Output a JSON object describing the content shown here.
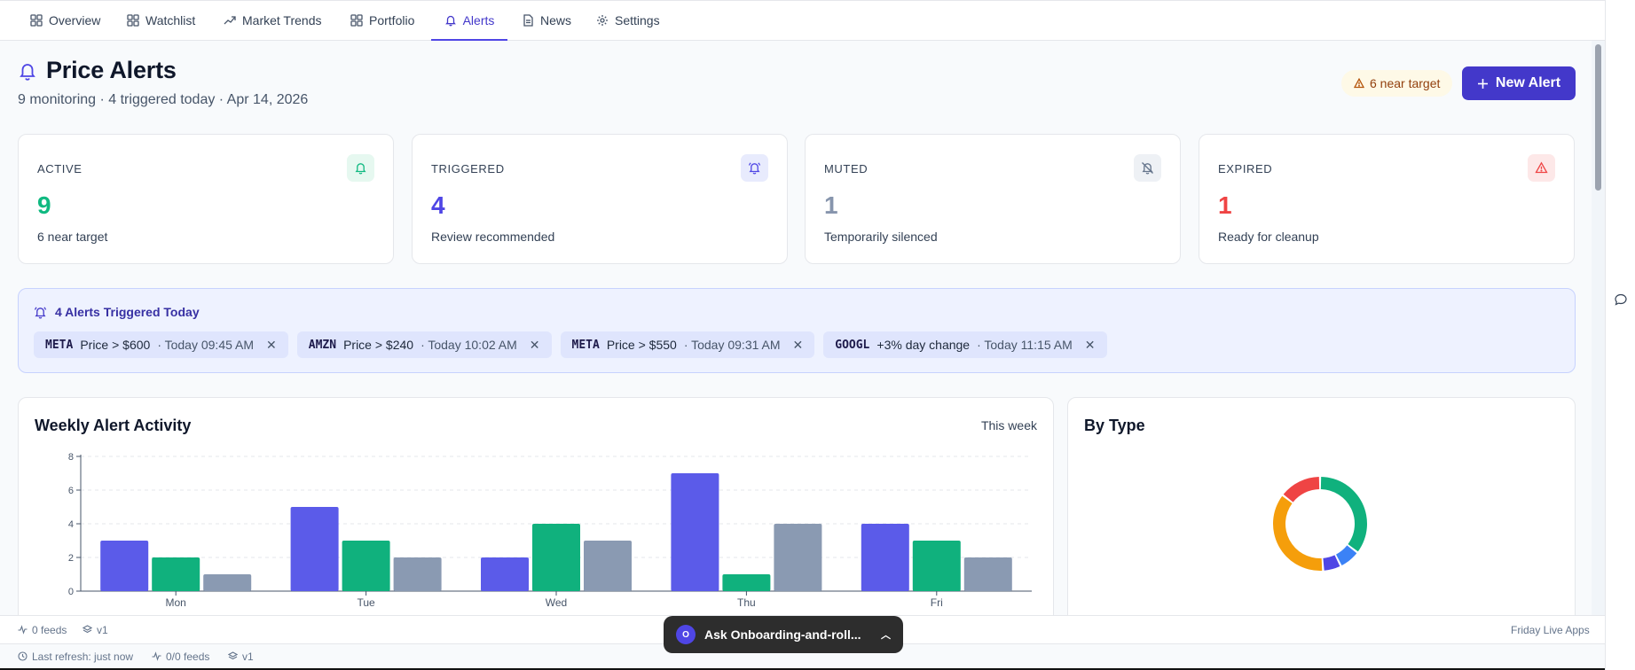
{
  "nav": {
    "tabs": [
      {
        "label": "Overview",
        "icon": "grid-icon"
      },
      {
        "label": "Watchlist",
        "icon": "grid-icon"
      },
      {
        "label": "Market Trends",
        "icon": "trend-icon"
      },
      {
        "label": "Portfolio",
        "icon": "grid-icon"
      },
      {
        "label": "Alerts",
        "icon": "bell-icon",
        "active": true
      },
      {
        "label": "News",
        "icon": "document-icon"
      },
      {
        "label": "Settings",
        "icon": "gear-icon"
      }
    ]
  },
  "header": {
    "title": "Price Alerts",
    "subtitle": "9 monitoring · 4 triggered today · Apr 14, 2026",
    "near_badge": "6 near target",
    "new_alert_label": "New Alert"
  },
  "stats": [
    {
      "label": "ACTIVE",
      "value": "9",
      "desc": "6 near target",
      "color": "#10b981",
      "icon_bg": "#e6f8f0",
      "icon": "bell-icon"
    },
    {
      "label": "TRIGGERED",
      "value": "4",
      "desc": "Review recommended",
      "color": "#4f46e5",
      "icon_bg": "#e8ebfd",
      "icon": "bell-ring-icon"
    },
    {
      "label": "MUTED",
      "value": "1",
      "desc": "Temporarily silenced",
      "color": "#8795ad",
      "icon_bg": "#eef1f5",
      "icon": "bell-off-icon"
    },
    {
      "label": "EXPIRED",
      "value": "1",
      "desc": "Ready for cleanup",
      "color": "#ef4444",
      "icon_bg": "#fde8e8",
      "icon": "alert-triangle-icon"
    }
  ],
  "triggered": {
    "title": "4 Alerts Triggered Today",
    "items": [
      {
        "symbol": "META",
        "condition": "Price > $600",
        "time": "· Today 09:45 AM"
      },
      {
        "symbol": "AMZN",
        "condition": "Price > $240",
        "time": "· Today 10:02 AM"
      },
      {
        "symbol": "META",
        "condition": "Price > $550",
        "time": "· Today 09:31 AM"
      },
      {
        "symbol": "GOOGL",
        "condition": "+3% day change",
        "time": "· Today 11:15 AM"
      }
    ]
  },
  "weekly": {
    "title": "Weekly Alert Activity",
    "range": "This week"
  },
  "by_type": {
    "title": "By Type"
  },
  "chart_data": [
    {
      "type": "bar",
      "title": "Weekly Alert Activity",
      "categories": [
        "Mon",
        "Tue",
        "Wed",
        "Thu",
        "Fri"
      ],
      "series": [
        {
          "values": [
            3,
            5,
            2,
            7,
            4
          ],
          "color": "#5b5be9"
        },
        {
          "values": [
            2,
            3,
            4,
            1,
            3
          ],
          "color": "#10b17d"
        },
        {
          "values": [
            1,
            2,
            3,
            4,
            2
          ],
          "color": "#8a9ab2"
        }
      ],
      "yticks": [
        0,
        2,
        4,
        6,
        8
      ],
      "ylim": [
        0,
        8
      ],
      "grid": true
    },
    {
      "type": "pie",
      "title": "By Type",
      "slices": [
        {
          "value": 34,
          "color": "#10b17d"
        },
        {
          "value": 7,
          "color": "#3b82f6"
        },
        {
          "value": 6,
          "color": "#4f46e5"
        },
        {
          "value": 35,
          "color": "#f59e0b"
        },
        {
          "value": 14,
          "color": "#ef4444"
        }
      ]
    }
  ],
  "footer": {
    "feeds": "0 feeds",
    "version": "v1",
    "brand": "Friday Live Apps",
    "last_refresh": "Last refresh: just now",
    "feeds2": "0/0 feeds",
    "version2": "v1"
  },
  "ask": {
    "avatar": "O",
    "label": "Ask Onboarding-and-roll..."
  }
}
